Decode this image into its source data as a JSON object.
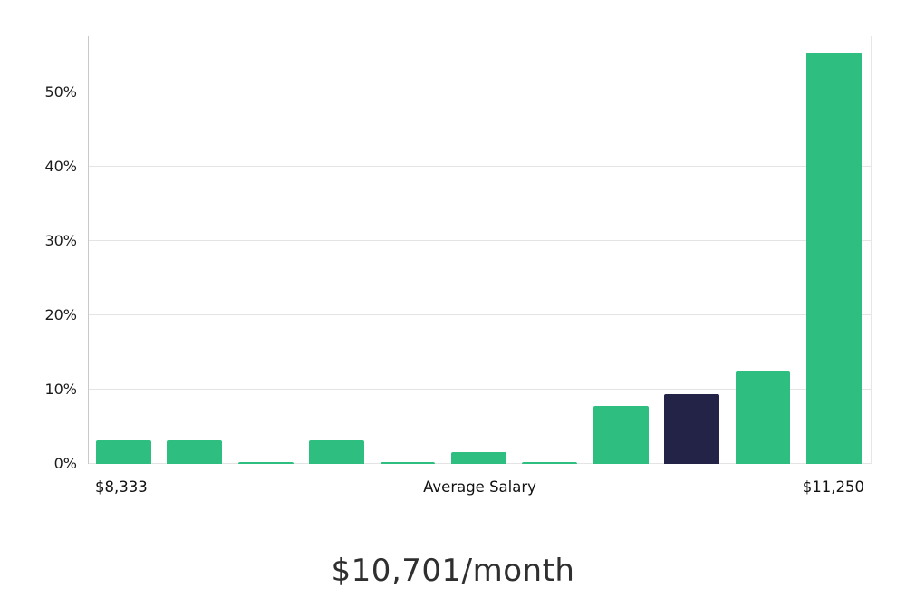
{
  "chart_data": {
    "type": "bar",
    "title": "$10,701/month",
    "values": [
      3.2,
      3.2,
      0.3,
      3.2,
      0.3,
      1.6,
      0.3,
      7.8,
      9.4,
      12.4,
      55.4
    ],
    "highlight_index": 8,
    "bar_color": "#2ebe80",
    "highlight_color": "#232348",
    "ylim": [
      0,
      57.6
    ],
    "y_ticks": [
      0,
      10,
      20,
      30,
      40,
      50
    ],
    "y_tick_suffix": "%",
    "grid": "horizontal",
    "legend": "none",
    "x_axis_labels": {
      "left": "$8,333",
      "center": "Average Salary",
      "right": "$11,250"
    }
  }
}
